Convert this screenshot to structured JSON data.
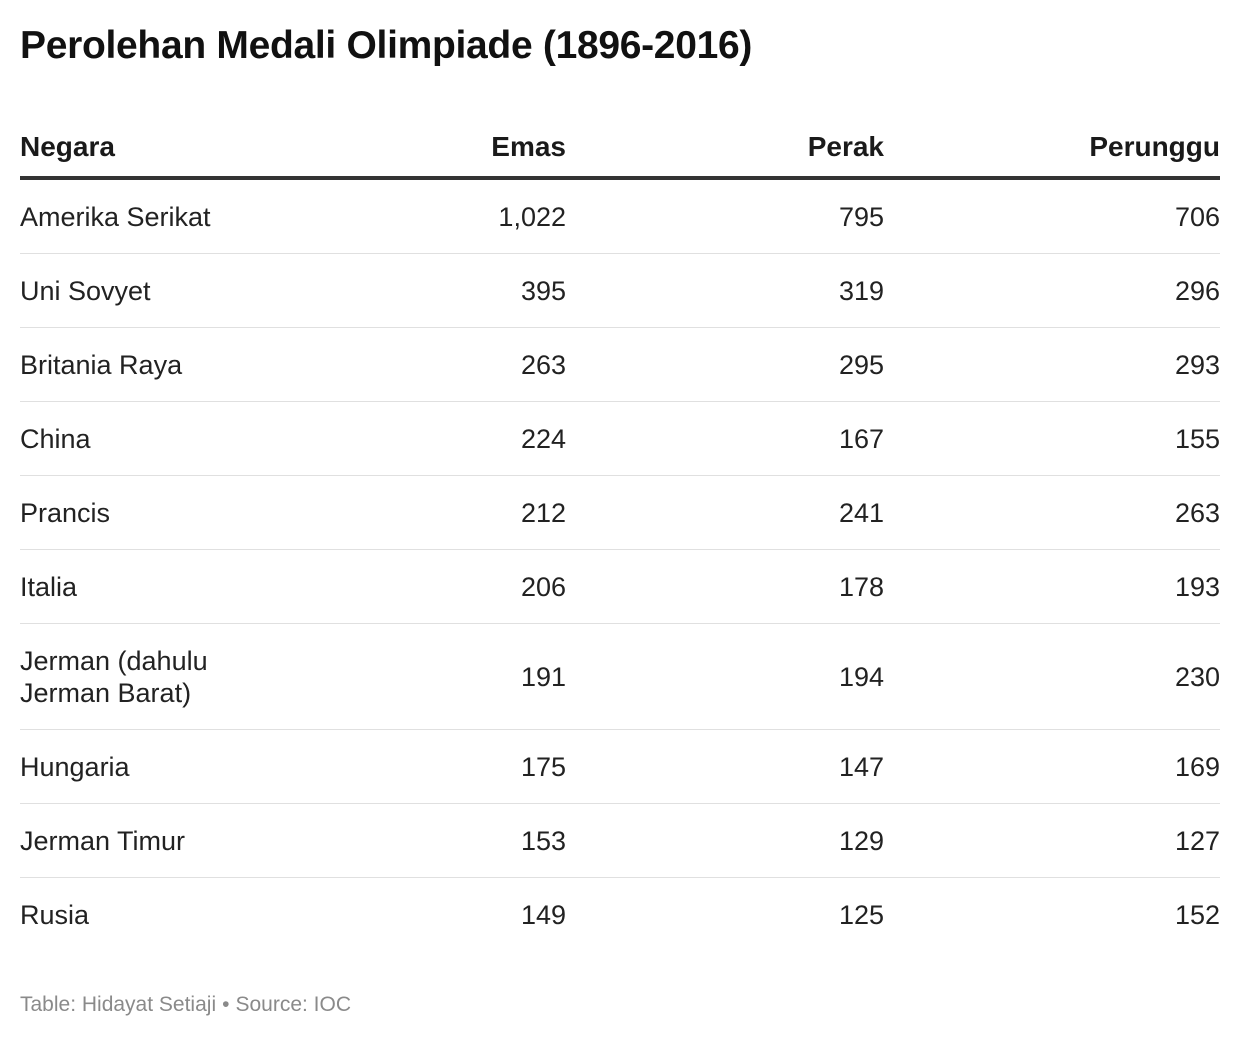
{
  "chart_data": {
    "type": "table",
    "title": "Perolehan Medali Olimpiade (1896-2016)",
    "columns": [
      "Negara",
      "Emas",
      "Perak",
      "Perunggu"
    ],
    "rows": [
      {
        "country": "Amerika Serikat",
        "gold": "1,022",
        "silver": "795",
        "bronze": "706"
      },
      {
        "country": "Uni Sovyet",
        "gold": "395",
        "silver": "319",
        "bronze": "296"
      },
      {
        "country": "Britania Raya",
        "gold": "263",
        "silver": "295",
        "bronze": "293"
      },
      {
        "country": "China",
        "gold": "224",
        "silver": "167",
        "bronze": "155"
      },
      {
        "country": "Prancis",
        "gold": "212",
        "silver": "241",
        "bronze": "263"
      },
      {
        "country": "Italia",
        "gold": "206",
        "silver": "178",
        "bronze": "193"
      },
      {
        "country": "Jerman (dahulu Jerman Barat)",
        "gold": "191",
        "silver": "194",
        "bronze": "230"
      },
      {
        "country": "Hungaria",
        "gold": "175",
        "silver": "147",
        "bronze": "169"
      },
      {
        "country": "Jerman Timur",
        "gold": "153",
        "silver": "129",
        "bronze": "127"
      },
      {
        "country": "Rusia",
        "gold": "149",
        "silver": "125",
        "bronze": "152"
      }
    ]
  },
  "footer": {
    "table_credit": "Table: Hidayat Setiaji",
    "separator": "•",
    "source": "Source: IOC"
  }
}
